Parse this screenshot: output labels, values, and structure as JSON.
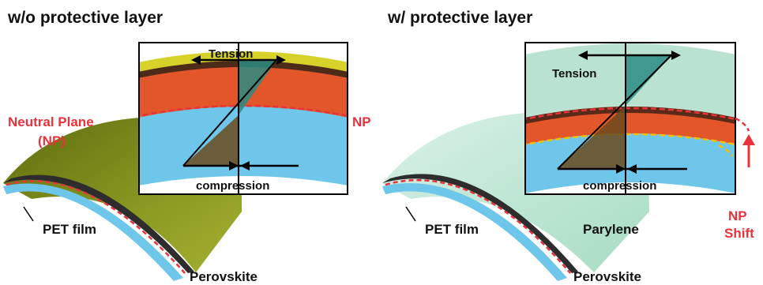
{
  "panels": {
    "left": {
      "title": "w/o protective layer",
      "inset_tension_label": "Tension",
      "inset_compression_label": "compression",
      "neutral_plane_label": "Neutral Plane",
      "neutral_plane_abbrev": "(NP)",
      "np_label": "NP",
      "substrate_label": "PET film",
      "active_layer_label": "Perovskite"
    },
    "right": {
      "title": "w/ protective layer",
      "inset_tension_label": "Tension",
      "inset_compression_label": "compression",
      "np_label": "NP",
      "np_shift_label": "Shift",
      "substrate_label": "PET film",
      "protective_layer_label": "Parylene",
      "active_layer_label": "Perovskite"
    }
  },
  "colors": {
    "neutral_plane_red": "#e8323c",
    "np_shift_yellow": "#f2c000",
    "pet_blue": "#6ec6ea",
    "perovskite_orange": "#e2562a",
    "parylene_green": "#b9e3d0",
    "olive_coating": "#7f8a18",
    "tension_teal": "#2a8b82",
    "compression_brown": "#6b4a1c"
  }
}
